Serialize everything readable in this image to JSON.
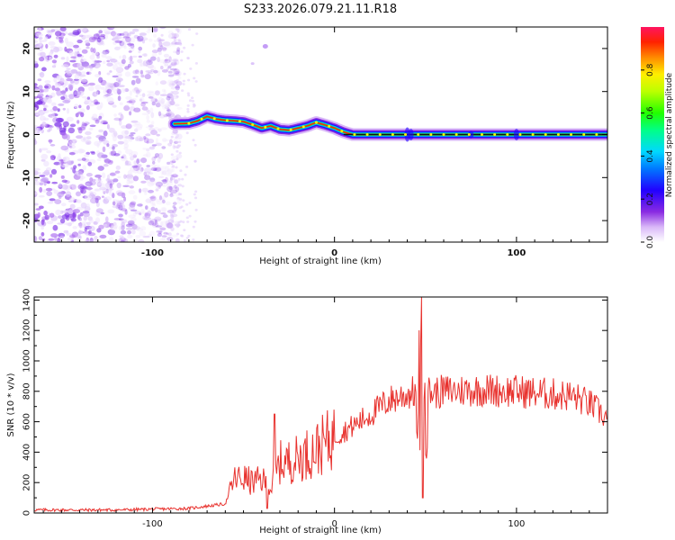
{
  "title": "S233.2026.079.21.11.R18",
  "chart_data": [
    {
      "type": "heatmap",
      "name": "spectrogram",
      "xlabel": "Height of straight line (km)",
      "ylabel": "Frequency (Hz)",
      "xlim": [
        -165,
        150
      ],
      "ylim": [
        -25,
        25
      ],
      "xticks": [
        -100,
        0,
        100
      ],
      "yticks": [
        20,
        10,
        0,
        -10,
        -20
      ],
      "colorbar": {
        "label": "Normalized spectral amplitude",
        "range": [
          0,
          1
        ],
        "ticks": [
          0.0,
          0.2,
          0.4,
          0.6,
          0.8
        ]
      },
      "ridge": {
        "x": [
          -88,
          -80,
          -75,
          -70,
          -65,
          -60,
          -55,
          -50,
          -45,
          -40,
          -35,
          -30,
          -25,
          -20,
          -15,
          -10,
          -5,
          0,
          5,
          10,
          20,
          40,
          60,
          80,
          100,
          120,
          150
        ],
        "y": [
          2.5,
          2.6,
          3.2,
          4.2,
          3.6,
          3.3,
          3.2,
          3.0,
          2.3,
          1.5,
          2.0,
          1.2,
          1.0,
          1.5,
          2.0,
          2.8,
          2.2,
          1.5,
          0.6,
          0.0,
          0.0,
          0.0,
          0.0,
          0.0,
          0.0,
          0.0,
          0.0
        ]
      }
    },
    {
      "type": "line",
      "name": "snr",
      "xlabel": "Height of straight line (km)",
      "ylabel": "SNR (10 * v/v)",
      "xlim": [
        -165,
        150
      ],
      "ylim": [
        0,
        1420
      ],
      "xticks": [
        -100,
        0,
        100
      ],
      "yticks": [
        0,
        200,
        400,
        600,
        800,
        1000,
        1200,
        1400
      ],
      "color": "#e8322e",
      "envelope": {
        "x": [
          -165,
          -120,
          -80,
          -60,
          -55,
          -50,
          -45,
          -40,
          -35,
          -30,
          -25,
          -20,
          -10,
          0,
          10,
          20,
          30,
          40,
          45,
          48,
          50,
          55,
          60,
          80,
          100,
          120,
          130,
          140,
          150
        ],
        "y": [
          20,
          20,
          30,
          60,
          220,
          230,
          200,
          220,
          160,
          330,
          340,
          360,
          420,
          500,
          570,
          650,
          740,
          780,
          800,
          820,
          800,
          790,
          800,
          810,
          800,
          780,
          770,
          720,
          620
        ]
      },
      "spikes": [
        {
          "x": 48,
          "y": 1420
        },
        {
          "x": 48.5,
          "y": 100
        },
        {
          "x": -33,
          "y": 650
        },
        {
          "x": -37,
          "y": 30
        }
      ]
    }
  ]
}
